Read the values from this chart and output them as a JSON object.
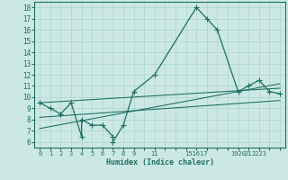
{
  "xlabel": "Humidex (Indice chaleur)",
  "bg_color": "#cce8e4",
  "line_color": "#1e6e62",
  "grid_color": "#aad4ce",
  "xlim": [
    -0.5,
    23.5
  ],
  "ylim": [
    5.5,
    18.5
  ],
  "yticks": [
    6,
    7,
    8,
    9,
    10,
    11,
    12,
    13,
    14,
    15,
    16,
    17,
    18
  ],
  "xticks_all": [
    0,
    1,
    2,
    3,
    4,
    5,
    6,
    7,
    8,
    9,
    10,
    11,
    12,
    13,
    14,
    15,
    16,
    17,
    18,
    19,
    20,
    21,
    22,
    23
  ],
  "xtick_labeled_pos": [
    0,
    1,
    2,
    3,
    4,
    5,
    6,
    7,
    8,
    9,
    11,
    15,
    16,
    17,
    19,
    20,
    21,
    22,
    23
  ],
  "xtick_labeled_val": [
    "0",
    "1",
    "2",
    "3",
    "4",
    "5",
    "6",
    "7",
    "8",
    "9",
    "11",
    "151617",
    "",
    "",
    "1920",
    "21",
    "2223",
    "",
    ""
  ],
  "series1_x": [
    0,
    1,
    2,
    3,
    4,
    4,
    5,
    6,
    7,
    7,
    8,
    9,
    11,
    15,
    16,
    17,
    19,
    20,
    21,
    22,
    23
  ],
  "series1_y": [
    9.5,
    9.0,
    8.5,
    9.5,
    6.5,
    8.0,
    7.5,
    7.5,
    6.5,
    6.0,
    7.5,
    10.5,
    12.0,
    18.0,
    17.0,
    16.0,
    10.5,
    11.0,
    11.5,
    10.5,
    10.3
  ],
  "series2_x": [
    0,
    23
  ],
  "series2_y": [
    9.5,
    10.8
  ],
  "series3_x": [
    0,
    23
  ],
  "series3_y": [
    8.2,
    9.7
  ],
  "series4_x": [
    0,
    23
  ],
  "series4_y": [
    7.2,
    11.2
  ],
  "line_width": 0.9,
  "marker_size": 3.0
}
